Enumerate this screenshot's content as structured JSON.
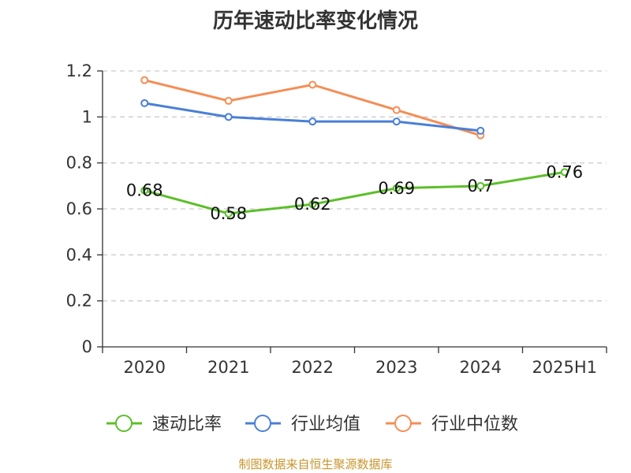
{
  "chart_data": {
    "type": "line",
    "title": "历年速动比率变化情况",
    "categories": [
      "2020",
      "2021",
      "2022",
      "2023",
      "2024",
      "2025H1"
    ],
    "ylim": [
      0,
      1.2
    ],
    "yticks": [
      "0",
      "0.2",
      "0.4",
      "0.6",
      "0.8",
      "1",
      "1.2"
    ],
    "grid": true,
    "legend_position": "bottom",
    "series": [
      {
        "name": "速动比率",
        "values": [
          0.68,
          0.58,
          0.62,
          0.69,
          0.7,
          0.76
        ],
        "labels": [
          "0.68",
          "0.58",
          "0.62",
          "0.69",
          "0.7",
          "0.76"
        ],
        "color": "#5cbf2a"
      },
      {
        "name": "行业均值",
        "values": [
          1.06,
          1.0,
          0.98,
          0.98,
          0.94,
          null
        ],
        "color": "#4a7fd6"
      },
      {
        "name": "行业中位数",
        "values": [
          1.16,
          1.07,
          1.14,
          1.03,
          0.92,
          null
        ],
        "color": "#f58d55"
      }
    ]
  },
  "source": "制图数据来自恒生聚源数据库"
}
